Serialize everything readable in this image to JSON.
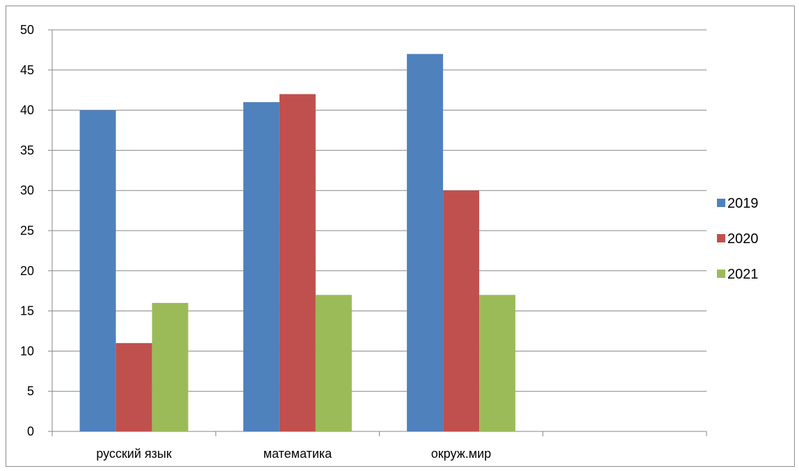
{
  "chart_data": {
    "type": "bar",
    "categories": [
      "русский язык",
      "математика",
      "окруж.мир",
      ""
    ],
    "series": [
      {
        "name": "2019",
        "values": [
          40,
          41,
          47,
          null
        ],
        "color": "#4F81BD"
      },
      {
        "name": "2020",
        "values": [
          11,
          42,
          30,
          null
        ],
        "color": "#C0504D"
      },
      {
        "name": "2021",
        "values": [
          16,
          17,
          17,
          null
        ],
        "color": "#9BBB59"
      }
    ],
    "ylim": [
      0,
      50
    ],
    "yticks": [
      0,
      5,
      10,
      15,
      20,
      25,
      30,
      35,
      40,
      45,
      50
    ],
    "grid": true,
    "legend_position": "right"
  }
}
